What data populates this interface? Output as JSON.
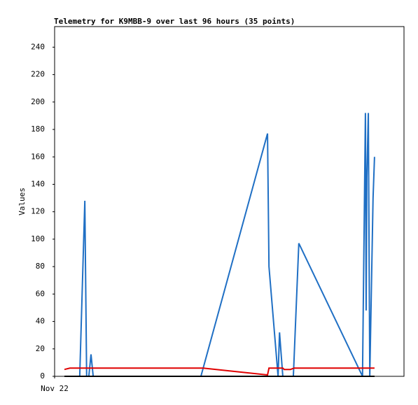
{
  "chart_data": {
    "type": "line",
    "title": "Telemetry for K9MBB-9 over last 96 hours (35 points)",
    "y_label": "Values",
    "xlim": [
      0,
      96
    ],
    "xticks": [
      {
        "value": 0,
        "label": "Nov 22"
      }
    ],
    "ylim": [
      0,
      255
    ],
    "yticks": [
      0,
      20,
      40,
      60,
      80,
      100,
      120,
      140,
      160,
      180,
      200,
      220,
      240
    ],
    "series": [
      {
        "color": "#1f6fc4",
        "x": [
          6.9,
          8.3,
          8.8,
          9.4,
          10.0,
          10.6,
          40.2,
          58.5,
          58.9,
          61.4,
          61.8,
          62.7,
          65.6,
          67.1,
          84.6,
          85.2,
          85.4,
          85.6,
          85.8,
          86.2,
          86.6,
          87.5,
          87.9
        ],
        "values": [
          0,
          128,
          0,
          0,
          16,
          0,
          0,
          177,
          80,
          0,
          32,
          0,
          0,
          97,
          0,
          145,
          192,
          48,
          145,
          192,
          0,
          130,
          160
        ]
      },
      {
        "color": "#e00000",
        "x": [
          2.7,
          4.2,
          11.0,
          40.8,
          58.5,
          58.9,
          62.7,
          63.1,
          64.8,
          65.8,
          87.9
        ],
        "values": [
          5,
          6,
          6,
          6,
          1,
          6,
          6,
          5,
          5,
          6,
          6
        ]
      },
      {
        "color": "#000000",
        "x": [
          2.7,
          87.9
        ],
        "values": [
          0,
          0
        ]
      }
    ]
  }
}
